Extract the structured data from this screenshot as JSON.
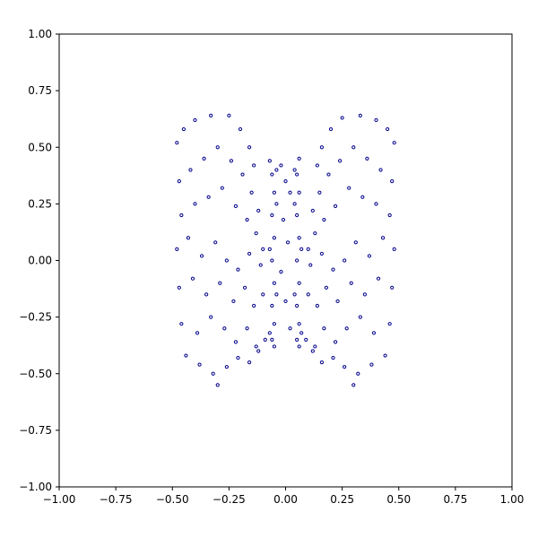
{
  "chart_data": {
    "type": "scatter",
    "title": "",
    "xlabel": "",
    "ylabel": "",
    "xlim": [
      -1.0,
      1.0
    ],
    "ylim": [
      -1.0,
      1.0
    ],
    "grid": false,
    "x_ticks": [
      -1.0,
      -0.75,
      -0.5,
      -0.25,
      0.0,
      0.25,
      0.5,
      0.75,
      1.0
    ],
    "y_ticks": [
      -1.0,
      -0.75,
      -0.5,
      -0.25,
      0.0,
      0.25,
      0.5,
      0.75,
      1.0
    ],
    "x_tick_labels": [
      "−1.00",
      "−0.75",
      "−0.50",
      "−0.25",
      "0.00",
      "0.25",
      "0.50",
      "0.75",
      "1.00"
    ],
    "y_tick_labels": [
      "−1.00",
      "−0.75",
      "−0.50",
      "−0.25",
      "0.00",
      "0.25",
      "0.50",
      "0.75",
      "1.00"
    ],
    "marker_color": "#00008b",
    "series": [
      {
        "points": [
          [
            -0.48,
            0.52
          ],
          [
            -0.45,
            0.58
          ],
          [
            -0.4,
            0.62
          ],
          [
            -0.33,
            0.64
          ],
          [
            -0.25,
            0.64
          ],
          [
            -0.2,
            0.58
          ],
          [
            -0.16,
            0.5
          ],
          [
            -0.14,
            0.42
          ],
          [
            -0.47,
            0.35
          ],
          [
            -0.42,
            0.4
          ],
          [
            -0.36,
            0.45
          ],
          [
            -0.3,
            0.5
          ],
          [
            -0.24,
            0.44
          ],
          [
            -0.19,
            0.38
          ],
          [
            -0.15,
            0.3
          ],
          [
            -0.12,
            0.22
          ],
          [
            -0.46,
            0.2
          ],
          [
            -0.4,
            0.25
          ],
          [
            -0.34,
            0.28
          ],
          [
            -0.28,
            0.32
          ],
          [
            -0.22,
            0.24
          ],
          [
            -0.17,
            0.18
          ],
          [
            -0.13,
            0.12
          ],
          [
            -0.1,
            0.05
          ],
          [
            -0.48,
            0.05
          ],
          [
            -0.43,
            0.1
          ],
          [
            -0.37,
            0.02
          ],
          [
            -0.31,
            0.08
          ],
          [
            -0.26,
            0.0
          ],
          [
            -0.21,
            -0.04
          ],
          [
            -0.16,
            0.03
          ],
          [
            -0.11,
            -0.02
          ],
          [
            -0.47,
            -0.12
          ],
          [
            -0.41,
            -0.08
          ],
          [
            -0.35,
            -0.15
          ],
          [
            -0.29,
            -0.1
          ],
          [
            -0.23,
            -0.18
          ],
          [
            -0.18,
            -0.12
          ],
          [
            -0.14,
            -0.2
          ],
          [
            -0.1,
            -0.15
          ],
          [
            -0.46,
            -0.28
          ],
          [
            -0.39,
            -0.32
          ],
          [
            -0.33,
            -0.25
          ],
          [
            -0.27,
            -0.3
          ],
          [
            -0.22,
            -0.36
          ],
          [
            -0.17,
            -0.3
          ],
          [
            -0.13,
            -0.38
          ],
          [
            -0.09,
            -0.35
          ],
          [
            -0.44,
            -0.42
          ],
          [
            -0.38,
            -0.46
          ],
          [
            -0.32,
            -0.5
          ],
          [
            -0.26,
            -0.47
          ],
          [
            -0.21,
            -0.43
          ],
          [
            -0.16,
            -0.45
          ],
          [
            -0.12,
            -0.4
          ],
          [
            -0.3,
            -0.55
          ],
          [
            -0.07,
            0.44
          ],
          [
            -0.06,
            0.38
          ],
          [
            -0.05,
            0.3
          ],
          [
            -0.06,
            0.2
          ],
          [
            -0.05,
            0.1
          ],
          [
            -0.06,
            0.0
          ],
          [
            -0.05,
            -0.1
          ],
          [
            -0.06,
            -0.2
          ],
          [
            -0.05,
            -0.28
          ],
          [
            -0.06,
            -0.35
          ],
          [
            -0.05,
            -0.38
          ],
          [
            -0.04,
            0.25
          ],
          [
            -0.04,
            -0.15
          ],
          [
            -0.07,
            0.05
          ],
          [
            -0.07,
            -0.32
          ],
          [
            -0.04,
            0.4
          ],
          [
            0.06,
            0.45
          ],
          [
            0.05,
            0.38
          ],
          [
            0.06,
            0.3
          ],
          [
            0.05,
            0.2
          ],
          [
            0.06,
            0.1
          ],
          [
            0.05,
            0.0
          ],
          [
            0.06,
            -0.1
          ],
          [
            0.05,
            -0.2
          ],
          [
            0.06,
            -0.28
          ],
          [
            0.05,
            -0.35
          ],
          [
            0.06,
            -0.38
          ],
          [
            0.04,
            0.25
          ],
          [
            0.04,
            -0.15
          ],
          [
            0.07,
            0.05
          ],
          [
            0.07,
            -0.32
          ],
          [
            0.04,
            0.4
          ],
          [
            -0.02,
            0.42
          ],
          [
            0.0,
            0.35
          ],
          [
            0.02,
            0.3
          ],
          [
            -0.01,
            0.18
          ],
          [
            0.01,
            0.08
          ],
          [
            -0.02,
            -0.05
          ],
          [
            0.0,
            -0.18
          ],
          [
            0.02,
            -0.3
          ],
          [
            0.48,
            0.52
          ],
          [
            0.45,
            0.58
          ],
          [
            0.4,
            0.62
          ],
          [
            0.33,
            0.64
          ],
          [
            0.25,
            0.63
          ],
          [
            0.2,
            0.58
          ],
          [
            0.16,
            0.5
          ],
          [
            0.14,
            0.42
          ],
          [
            0.47,
            0.35
          ],
          [
            0.42,
            0.4
          ],
          [
            0.36,
            0.45
          ],
          [
            0.3,
            0.5
          ],
          [
            0.24,
            0.44
          ],
          [
            0.19,
            0.38
          ],
          [
            0.15,
            0.3
          ],
          [
            0.12,
            0.22
          ],
          [
            0.46,
            0.2
          ],
          [
            0.4,
            0.25
          ],
          [
            0.34,
            0.28
          ],
          [
            0.28,
            0.32
          ],
          [
            0.22,
            0.24
          ],
          [
            0.17,
            0.18
          ],
          [
            0.13,
            0.12
          ],
          [
            0.1,
            0.05
          ],
          [
            0.48,
            0.05
          ],
          [
            0.43,
            0.1
          ],
          [
            0.37,
            0.02
          ],
          [
            0.31,
            0.08
          ],
          [
            0.26,
            0.0
          ],
          [
            0.21,
            -0.04
          ],
          [
            0.16,
            0.03
          ],
          [
            0.11,
            -0.02
          ],
          [
            0.47,
            -0.12
          ],
          [
            0.41,
            -0.08
          ],
          [
            0.35,
            -0.15
          ],
          [
            0.29,
            -0.1
          ],
          [
            0.23,
            -0.18
          ],
          [
            0.18,
            -0.12
          ],
          [
            0.14,
            -0.2
          ],
          [
            0.1,
            -0.15
          ],
          [
            0.46,
            -0.28
          ],
          [
            0.39,
            -0.32
          ],
          [
            0.33,
            -0.25
          ],
          [
            0.27,
            -0.3
          ],
          [
            0.22,
            -0.36
          ],
          [
            0.17,
            -0.3
          ],
          [
            0.13,
            -0.38
          ],
          [
            0.09,
            -0.35
          ],
          [
            0.44,
            -0.42
          ],
          [
            0.38,
            -0.46
          ],
          [
            0.32,
            -0.5
          ],
          [
            0.26,
            -0.47
          ],
          [
            0.21,
            -0.43
          ],
          [
            0.16,
            -0.45
          ],
          [
            0.12,
            -0.4
          ],
          [
            0.3,
            -0.55
          ]
        ]
      }
    ]
  }
}
